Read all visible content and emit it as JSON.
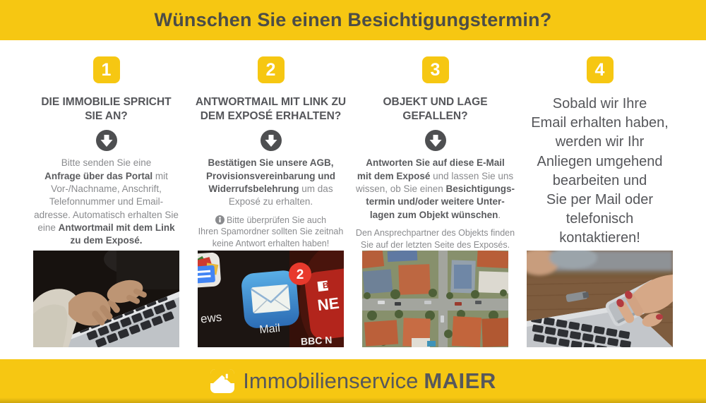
{
  "theme": {
    "yellow": "#F6C712",
    "heading_gray": "#55565A",
    "body_gray": "#8A8B8E",
    "bold_gray": "#5A5B5E",
    "arrow_circle": "#4E4F51"
  },
  "header": {
    "title": "Wünschen Sie einen Besichtigungstermin?"
  },
  "steps": [
    {
      "number": "1",
      "heading": "DIE IMMOBILIE SPRICHT\nSIE AN?",
      "body": [
        {
          "text": "Bitte senden Sie eine\n",
          "bold": false
        },
        {
          "text": "Anfrage über das Portal",
          "bold": true
        },
        {
          "text": " mit\nVor-/Nachname, Anschrift,\nTelefonnummer und Email-\nadresse. Automatisch erhalten Sie\neine ",
          "bold": false
        },
        {
          "text": "Antwortmail mit dem Link\nzu dem Exposé.",
          "bold": true
        }
      ]
    },
    {
      "number": "2",
      "heading": "ANTWORTMAIL MIT LINK ZU\nDEM EXPOSÉ ERHALTEN?",
      "body": [
        {
          "text": "Bestätigen Sie unsere AGB,\nProvisionsvereinbarung und\nWiderrufsbelehrung",
          "bold": true
        },
        {
          "text": " um das\nExposé zu erhalten.",
          "bold": false
        }
      ],
      "note": "Bitte überprüfen Sie auch\nIhren Spamordner sollten Sie zeitnah\nkeine Antwort erhalten haben!"
    },
    {
      "number": "3",
      "heading": "OBJEKT UND LAGE\nGEFALLEN?",
      "body": [
        {
          "text": "Antworten Sie auf diese E-Mail\nmit dem Exposé",
          "bold": true
        },
        {
          "text": " und lassen Sie uns\nwissen, ob Sie einen ",
          "bold": false
        },
        {
          "text": "Besichtigungs-\ntermin und/oder weitere Unter-\nlagen zum Objekt wünschen",
          "bold": true
        },
        {
          "text": ".",
          "bold": false
        }
      ],
      "note": "Den Ansprechpartner des Objekts finden\nSie auf der letzten Seite des Exposés."
    },
    {
      "number": "4",
      "big_text": "Sobald wir Ihre\nEmail erhalten haben,\nwerden wir Ihr\nAnliegen umgehend\nbearbeiten und\nSie per Mail oder\ntelefonisch\nkontaktieren!"
    }
  ],
  "photos": {
    "mail_app": {
      "mail_label": "Mail",
      "badge_count": "2",
      "partial_left": "ews",
      "partial_right_b": "B",
      "partial_right_top": "NE",
      "partial_right_bottom": "BBC N"
    }
  },
  "footer": {
    "brand_regular": "Immobilienservice",
    "brand_bold": "MAIER"
  }
}
